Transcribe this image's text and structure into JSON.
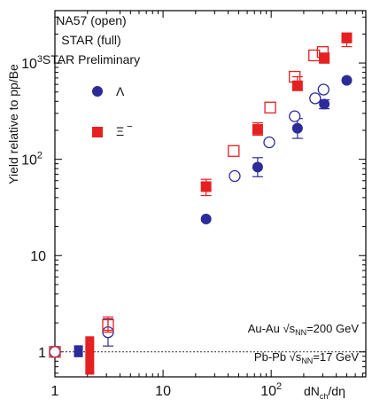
{
  "chart_data": {
    "type": "scatter",
    "xlabel": "dNch/dη",
    "ylabel": "Yield relative to pp/Be",
    "x_scale": "log",
    "y_scale": "log",
    "xlim": [
      1,
      750
    ],
    "ylim": [
      0.55,
      3500
    ],
    "x_ticks": [
      {
        "value": 1,
        "label": "1"
      },
      {
        "value": 10,
        "label": "10"
      },
      {
        "value": 100,
        "label": "10",
        "sup": "2"
      }
    ],
    "y_ticks": [
      {
        "value": 1,
        "label": "1"
      },
      {
        "value": 10,
        "label": "10"
      },
      {
        "value": 100,
        "label": "10",
        "sup": "2"
      },
      {
        "value": 1000,
        "label": "10",
        "sup": "3"
      }
    ],
    "legend_text": [
      "NA57 (open)",
      "STAR (full)",
      "STAR Preliminary"
    ],
    "legend_markers": [
      {
        "label": "Λ",
        "color": "#2b2b9a"
      },
      {
        "label": "Ξ ‾",
        "color": "#e62020"
      }
    ],
    "colors": {
      "lambda": "#2b2b9a",
      "xi": "#e62020"
    },
    "reference_line": {
      "y": 1,
      "style": "dotted"
    },
    "annotations": {
      "auau": {
        "prefix": "Au-Au ",
        "root": "√s",
        "sub": "NN",
        "suffix": "=200 GeV"
      },
      "pbpb": {
        "prefix": "Pb-Pb ",
        "root": "√s",
        "sub": "NN",
        "suffix": "=17   GeV"
      }
    },
    "series": [
      {
        "name": "Λ",
        "marker": "filled-circle",
        "color": "#2b2b9a",
        "points": [
          {
            "x": 25,
            "y": 24
          },
          {
            "x": 75,
            "y": 83,
            "err": [
              66,
              104
            ]
          },
          {
            "x": 175,
            "y": 210,
            "err": [
              165,
              265
            ]
          },
          {
            "x": 310,
            "y": 375,
            "err": [
              335,
              415
            ]
          },
          {
            "x": 500,
            "y": 660
          }
        ]
      },
      {
        "name": "Λ",
        "marker": "open-circle",
        "color": "#2b2b9a",
        "points": [
          {
            "x": 1.0,
            "y": 1.0
          },
          {
            "x": 3.1,
            "y": 1.6,
            "err": [
              1.15,
              2.2
            ]
          },
          {
            "x": 46,
            "y": 67
          },
          {
            "x": 96,
            "y": 150
          },
          {
            "x": 165,
            "y": 280
          },
          {
            "x": 255,
            "y": 430
          },
          {
            "x": 305,
            "y": 530
          }
        ]
      },
      {
        "name": "Ξ ‾",
        "marker": "filled-square",
        "color": "#e62020",
        "points": [
          {
            "x": 25,
            "y": 52,
            "err": [
              42,
              62
            ]
          },
          {
            "x": 75,
            "y": 205,
            "err": [
              178,
              240
            ]
          },
          {
            "x": 175,
            "y": 580,
            "err": [
              520,
              720
            ]
          },
          {
            "x": 310,
            "y": 1120,
            "err": [
              1000,
              1270
            ]
          },
          {
            "x": 500,
            "y": 1820,
            "err": [
              1480,
              2050
            ]
          }
        ]
      },
      {
        "name": "Ξ ‾",
        "marker": "open-square",
        "color": "#e62020",
        "points": [
          {
            "x": 1.0,
            "y": 1.0
          },
          {
            "x": 3.1,
            "y": 1.9,
            "err": [
              1.6,
              2.3
            ]
          },
          {
            "x": 45,
            "y": 122
          },
          {
            "x": 98,
            "y": 345
          },
          {
            "x": 165,
            "y": 720
          },
          {
            "x": 250,
            "y": 1200
          },
          {
            "x": 300,
            "y": 1300
          }
        ]
      }
    ],
    "systematic_bars": [
      {
        "x": 1.65,
        "low": 0.88,
        "high": 1.17,
        "color": "#2b2b9a"
      },
      {
        "x": 2.1,
        "low": 0.58,
        "high": 1.45,
        "color": "#e62020"
      }
    ]
  }
}
